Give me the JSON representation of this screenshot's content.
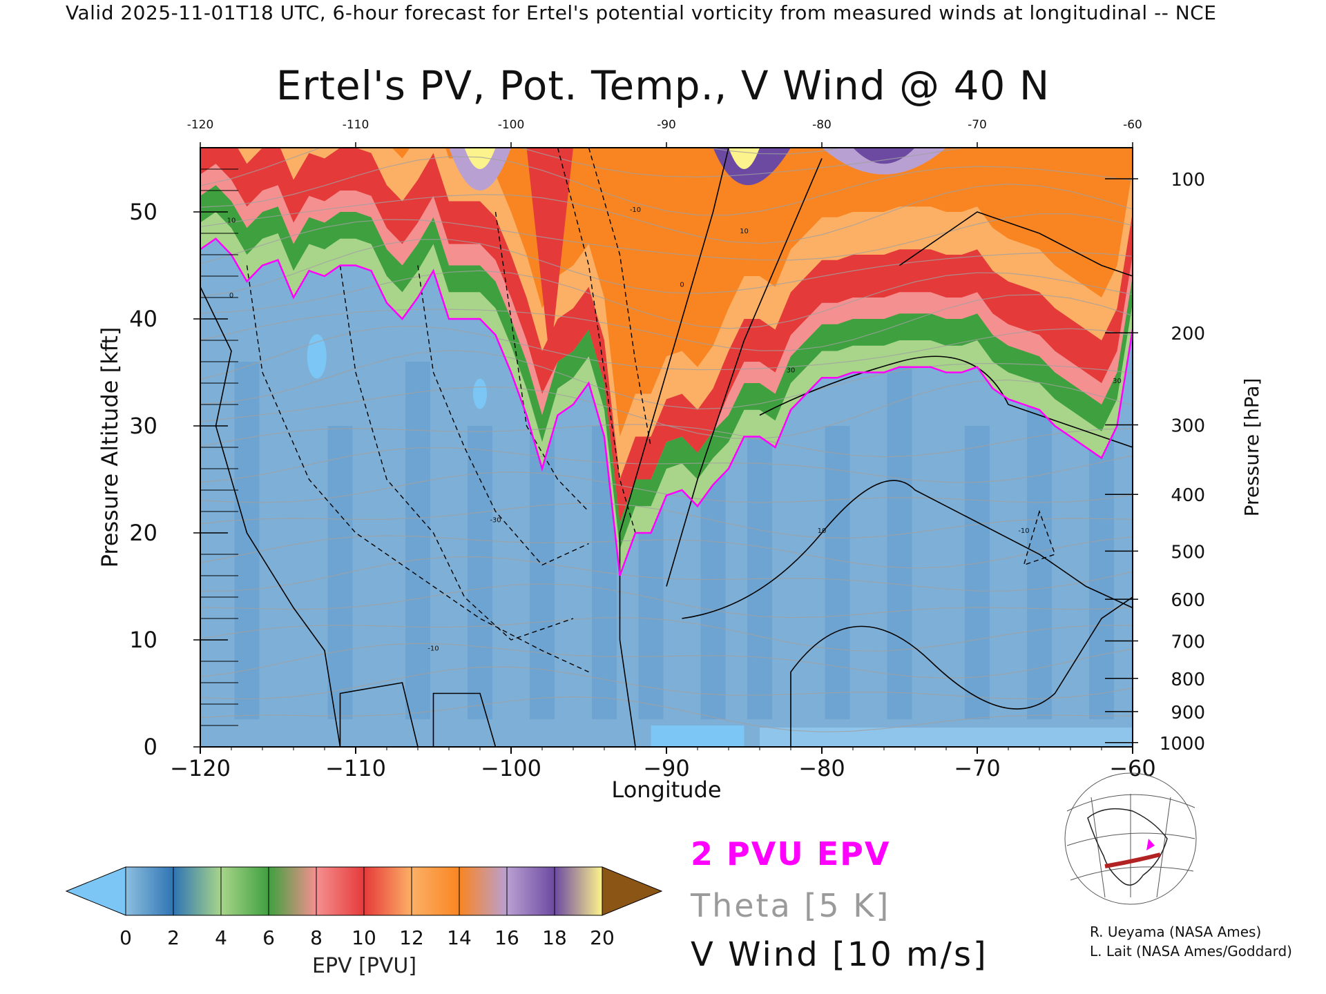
{
  "header": "Valid 2025-11-01T18 UTC, 6-hour forecast for Ertel's potential vorticity from measured winds at longitudinal -- NCE",
  "chart_data": {
    "type": "heatmap",
    "title": "Ertel's PV, Pot. Temp., V Wind @ 40 N",
    "xlabel": "Longitude",
    "ylabel": "Pressure Altitude [kft]",
    "ylabel_right": "Pressure [hPa]",
    "xlim": [
      -120,
      -60
    ],
    "ylim": [
      0,
      56
    ],
    "x_ticks": [
      -120,
      -110,
      -100,
      -90,
      -80,
      -70,
      -60
    ],
    "x_tick_labels": [
      "−120",
      "−110",
      "−100",
      "−90",
      "−80",
      "−70",
      "−60"
    ],
    "top_ticks": [
      "-120",
      "-110",
      "-100",
      "-90",
      "-80",
      "-70",
      "-60"
    ],
    "y_ticks": [
      0,
      10,
      20,
      30,
      40,
      50
    ],
    "pressure_ticks": [
      {
        "hPa": 1000,
        "kft": 0.4
      },
      {
        "hPa": 900,
        "kft": 3.3
      },
      {
        "hPa": 800,
        "kft": 6.4
      },
      {
        "hPa": 700,
        "kft": 9.9
      },
      {
        "hPa": 600,
        "kft": 13.8
      },
      {
        "hPa": 500,
        "kft": 18.3
      },
      {
        "hPa": 400,
        "kft": 23.6
      },
      {
        "hPa": 300,
        "kft": 30.1
      },
      {
        "hPa": 200,
        "kft": 38.7
      },
      {
        "hPa": 100,
        "kft": 53.1
      }
    ],
    "epv_2pvu_height_kft": [
      [
        -120,
        46.5
      ],
      [
        -119,
        47.5
      ],
      [
        -118,
        46
      ],
      [
        -117,
        43.5
      ],
      [
        -116,
        45
      ],
      [
        -115,
        45.5
      ],
      [
        -114,
        42
      ],
      [
        -113,
        44.5
      ],
      [
        -112,
        44
      ],
      [
        -111,
        45
      ],
      [
        -110,
        45
      ],
      [
        -109,
        44.5
      ],
      [
        -108,
        41.5
      ],
      [
        -107,
        40
      ],
      [
        -106,
        42
      ],
      [
        -105,
        44.5
      ],
      [
        -104,
        40
      ],
      [
        -103,
        40
      ],
      [
        -102,
        40
      ],
      [
        -101,
        38.5
      ],
      [
        -100,
        35
      ],
      [
        -99,
        31
      ],
      [
        -98,
        26
      ],
      [
        -97,
        31
      ],
      [
        -96,
        32
      ],
      [
        -95,
        34
      ],
      [
        -94,
        29
      ],
      [
        -93,
        16
      ],
      [
        -92,
        20
      ],
      [
        -91,
        20
      ],
      [
        -90,
        23.5
      ],
      [
        -89,
        24
      ],
      [
        -88,
        22.5
      ],
      [
        -87,
        24.5
      ],
      [
        -86,
        26
      ],
      [
        -85,
        29
      ],
      [
        -84,
        29
      ],
      [
        -83,
        28
      ],
      [
        -82,
        31.5
      ],
      [
        -81,
        33
      ],
      [
        -80,
        34.5
      ],
      [
        -79,
        34.5
      ],
      [
        -78,
        35
      ],
      [
        -77,
        35
      ],
      [
        -76,
        35
      ],
      [
        -75,
        35.5
      ],
      [
        -74,
        35.5
      ],
      [
        -73,
        35.5
      ],
      [
        -72,
        35
      ],
      [
        -71,
        35
      ],
      [
        -70,
        35.5
      ],
      [
        -69,
        33.5
      ],
      [
        -68,
        32.5
      ],
      [
        -67,
        32
      ],
      [
        -66,
        31.5
      ],
      [
        -65,
        30
      ],
      [
        -64,
        29
      ],
      [
        -63,
        28
      ],
      [
        -62,
        27
      ],
      [
        -61,
        30
      ],
      [
        -60,
        39
      ]
    ],
    "colorbar": {
      "label": "EPV [PVU]",
      "tick_labels": [
        "0",
        "2",
        "4",
        "6",
        "8",
        "10",
        "12",
        "14",
        "16",
        "18",
        "20"
      ],
      "colors": [
        "#8dbfe0",
        "#2f74b4",
        "#a8d58a",
        "#3fa03f",
        "#f59090",
        "#e53a3a",
        "#fcb066",
        "#f98522",
        "#b9a0d2",
        "#6c4aa2",
        "#fdf38c"
      ],
      "under_color": "#7cc6f6",
      "over_color": "#8b5516"
    },
    "legend": [
      {
        "text": "2 PVU EPV",
        "color": "#ff00ff"
      },
      {
        "text": "Theta [5 K]",
        "color": "#9a9a9a"
      },
      {
        "text": "V Wind [10 m/s]",
        "color": "#000000"
      }
    ],
    "contour_labels": [
      "10",
      "0",
      "-10",
      "-30",
      "30",
      "-10",
      "10",
      "0",
      "30",
      "-10",
      "10"
    ],
    "grid": false
  },
  "credits": [
    "R. Ueyama (NASA Ames)",
    "L. Lait (NASA Ames/Goddard)"
  ],
  "colors": {
    "pv_contour": "#ff00ff",
    "theta": "#a0a0a0",
    "wind": "#000000"
  }
}
